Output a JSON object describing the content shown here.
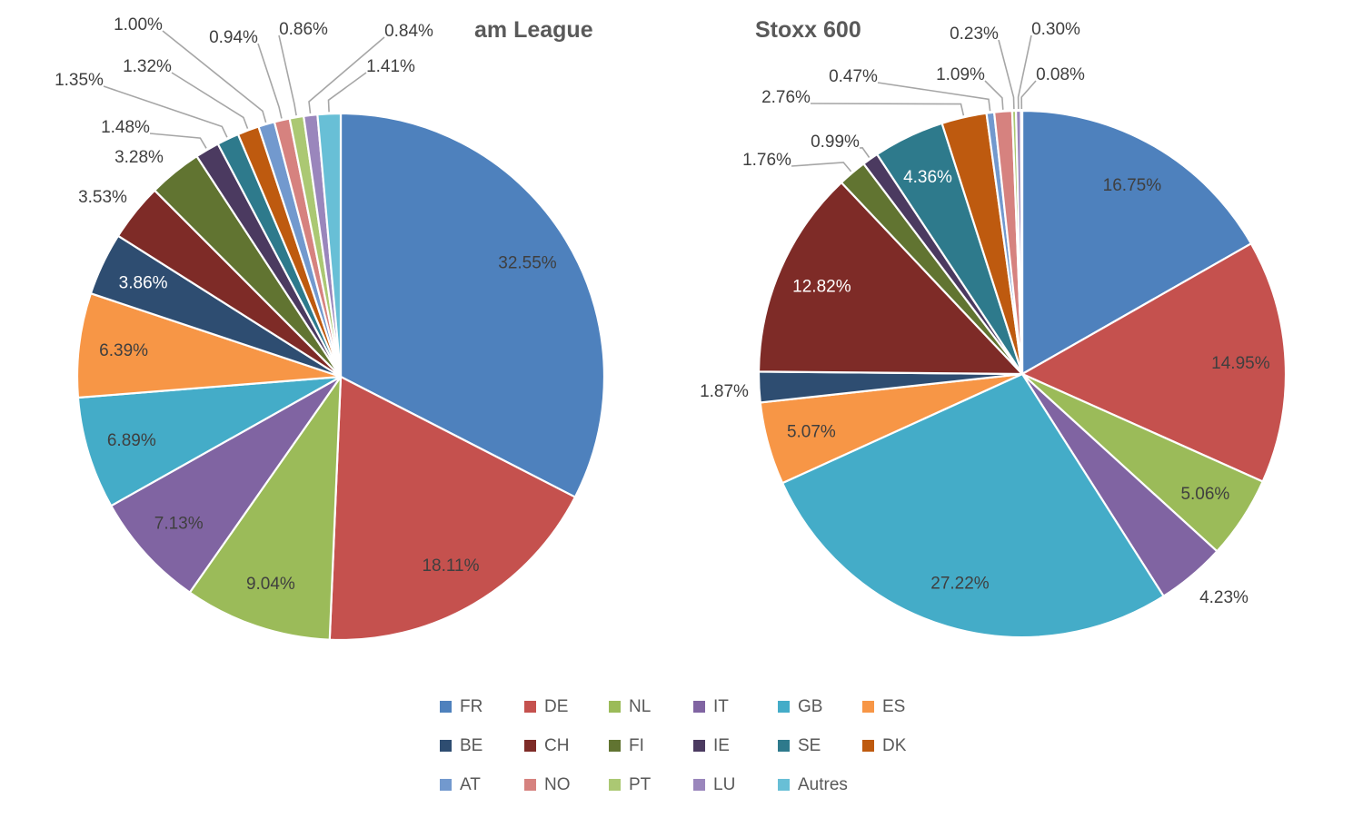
{
  "page": {
    "background": "#FFFFFF"
  },
  "palette": {
    "FR": "#4E81BD",
    "DE": "#C5514E",
    "NL": "#9BBB59",
    "IT": "#8064A2",
    "GB": "#44ACC8",
    "ES": "#F79646",
    "BE": "#2E4D71",
    "CH": "#7E2B27",
    "FI": "#617431",
    "IE": "#4B3A60",
    "SE": "#2E7A8C",
    "DK": "#BE5A0F",
    "AT": "#7299CE",
    "NO": "#D6827F",
    "PT": "#ABC873",
    "LU": "#9A86BC",
    "Autres": "#68BFD6"
  },
  "text_colors": {
    "title": "#595959",
    "label": "#3F3F3F",
    "label_light": "#FFFFFF",
    "leader_line": "#A6A6A6",
    "legend": "#595959"
  },
  "legend": {
    "items": [
      "FR",
      "DE",
      "NL",
      "IT",
      "GB",
      "ES",
      "BE",
      "CH",
      "FI",
      "IE",
      "SE",
      "DK",
      "AT",
      "NO",
      "PT",
      "LU",
      "Autres"
    ]
  },
  "chart_data": [
    {
      "type": "pie",
      "title": "am League",
      "legend_position": "bottom",
      "categories": [
        "FR",
        "DE",
        "NL",
        "IT",
        "GB",
        "ES",
        "BE",
        "CH",
        "FI",
        "IE",
        "SE",
        "DK",
        "AT",
        "NO",
        "PT",
        "LU",
        "Autres"
      ],
      "values": [
        32.55,
        18.11,
        9.04,
        7.13,
        6.89,
        6.39,
        3.86,
        3.53,
        3.28,
        1.48,
        1.35,
        1.32,
        1.0,
        0.94,
        0.86,
        0.84,
        1.41
      ],
      "labels": [
        "32.55%",
        "18.11%",
        "9.04%",
        "7.13%",
        "6.89%",
        "6.39%",
        "3.86%",
        "3.53%",
        "3.28%",
        "1.48%",
        "1.35%",
        "1.32%",
        "1.00%",
        "0.94%",
        "0.86%",
        "0.84%",
        "1.41%"
      ]
    },
    {
      "type": "pie",
      "title": "Stoxx 600",
      "legend_position": "bottom",
      "categories": [
        "FR",
        "DE",
        "NL",
        "IT",
        "GB",
        "ES",
        "BE",
        "CH",
        "FI",
        "IE",
        "SE",
        "DK",
        "AT",
        "NO",
        "PT",
        "LU",
        "Autres"
      ],
      "values": [
        16.75,
        14.95,
        5.06,
        4.23,
        27.22,
        5.07,
        1.87,
        12.82,
        1.76,
        0.99,
        4.36,
        2.76,
        0.47,
        1.09,
        0.23,
        0.3,
        0.08
      ],
      "labels": [
        "16.75%",
        "14.95%",
        "5.06%",
        "4.23%",
        "27.22%",
        "5.07%",
        "1.87%",
        "12.82%",
        "1.76%",
        "0.99%",
        "4.36%",
        "2.76%",
        "0.47%",
        "1.09%",
        "0.23%",
        "0.30%",
        "0.08%"
      ]
    }
  ]
}
